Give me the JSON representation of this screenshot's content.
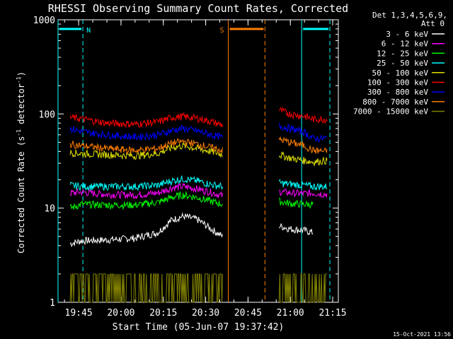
{
  "chart_data": {
    "type": "line",
    "title": "RHESSI Observing Summary Count Rates, Corrected",
    "xlabel": "Start Time (05-Jun-07 19:37:42)",
    "ylabel": "Corrected Count Rate (s",
    "ylabel_sup1": "-1",
    "ylabel_mid": " detector",
    "ylabel_sup2": "-1",
    "ylabel_end": ")",
    "yscale": "log",
    "ylim": [
      1,
      1000
    ],
    "xlim": [
      "19:37:42",
      "21:17"
    ],
    "ytick_labels": [
      "1",
      "10",
      "100",
      "1000"
    ],
    "xtick_labels": [
      "19:45",
      "20:00",
      "20:15",
      "20:30",
      "20:45",
      "21:00",
      "21:15"
    ],
    "legend_header": [
      "Det 1,3,4,5,6,9,",
      "Att 0"
    ],
    "legend_position": "right",
    "footer": "15-Oct-2021 13:56",
    "flags": [
      {
        "label": "N",
        "color": "#00ffff",
        "spans": [
          [
            "19:37:42",
            "19:46:30"
          ],
          [
            "21:04",
            "21:14"
          ]
        ]
      },
      {
        "label": "S",
        "color": "#ff7f00",
        "spans": [
          [
            "20:38",
            "20:51"
          ]
        ]
      }
    ],
    "series": [
      {
        "name": "3 - 6 keV",
        "color": "#ffffff",
        "values": [
          [
            "19:42",
            4.2
          ],
          [
            "19:46",
            4.5
          ],
          [
            "19:55",
            4.6
          ],
          [
            "20:05",
            4.8
          ],
          [
            "20:13",
            5.5
          ],
          [
            "20:18",
            7.5
          ],
          [
            "20:22",
            8.2
          ],
          [
            "20:27",
            7.6
          ],
          [
            "20:32",
            6.0
          ],
          [
            "20:36",
            5.0
          ],
          [
            "20:56",
            6.5
          ],
          [
            "21:00",
            6.0
          ],
          [
            "21:05",
            5.8
          ],
          [
            "21:08",
            5.5
          ]
        ]
      },
      {
        "name": "6 - 12 keV",
        "color": "#ff00ff",
        "values": [
          [
            "19:42",
            14.5
          ],
          [
            "19:46",
            14.8
          ],
          [
            "19:55",
            14.0
          ],
          [
            "20:05",
            13.8
          ],
          [
            "20:13",
            14.5
          ],
          [
            "20:18",
            16.5
          ],
          [
            "20:22",
            17.0
          ],
          [
            "20:27",
            16.0
          ],
          [
            "20:32",
            14.8
          ],
          [
            "20:36",
            13.5
          ],
          [
            "20:56",
            15.0
          ],
          [
            "21:00",
            14.5
          ],
          [
            "21:05",
            14.3
          ],
          [
            "21:08",
            14.5
          ],
          [
            "21:13",
            14.0
          ]
        ]
      },
      {
        "name": "12 - 25 keV",
        "color": "#00ff00",
        "values": [
          [
            "19:42",
            10.0
          ],
          [
            "19:46",
            11.0
          ],
          [
            "19:55",
            10.8
          ],
          [
            "20:05",
            10.8
          ],
          [
            "20:13",
            11.5
          ],
          [
            "20:18",
            13.0
          ],
          [
            "20:22",
            13.8
          ],
          [
            "20:27",
            13.0
          ],
          [
            "20:32",
            11.8
          ],
          [
            "20:36",
            11.0
          ],
          [
            "20:56",
            11.8
          ],
          [
            "21:00",
            11.2
          ],
          [
            "21:05",
            11.0
          ],
          [
            "21:08",
            11.0
          ]
        ]
      },
      {
        "name": "25 - 50 keV",
        "color": "#00ffff",
        "values": [
          [
            "19:42",
            17.5
          ],
          [
            "19:46",
            17.0
          ],
          [
            "19:55",
            17.0
          ],
          [
            "20:05",
            17.0
          ],
          [
            "20:13",
            17.5
          ],
          [
            "20:18",
            19.5
          ],
          [
            "20:22",
            20.5
          ],
          [
            "20:27",
            19.5
          ],
          [
            "20:32",
            17.8
          ],
          [
            "20:36",
            17.0
          ],
          [
            "20:56",
            18.5
          ],
          [
            "21:00",
            18.0
          ],
          [
            "21:05",
            17.5
          ],
          [
            "21:08",
            17.0
          ],
          [
            "21:13",
            17.0
          ]
        ]
      },
      {
        "name": "50 - 100 keV",
        "color": "#e0e000",
        "values": [
          [
            "19:42",
            39
          ],
          [
            "19:46",
            38
          ],
          [
            "19:55",
            37
          ],
          [
            "20:05",
            36
          ],
          [
            "20:13",
            38
          ],
          [
            "20:18",
            44
          ],
          [
            "20:22",
            46
          ],
          [
            "20:27",
            43
          ],
          [
            "20:32",
            40
          ],
          [
            "20:36",
            37
          ],
          [
            "20:56",
            37
          ],
          [
            "21:00",
            34
          ],
          [
            "21:05",
            32
          ],
          [
            "21:08",
            31
          ],
          [
            "21:13",
            32
          ]
        ]
      },
      {
        "name": "100 - 300 keV",
        "color": "#ff0000",
        "values": [
          [
            "19:42",
            92
          ],
          [
            "19:46",
            89
          ],
          [
            "19:55",
            80
          ],
          [
            "20:05",
            78
          ],
          [
            "20:13",
            82
          ],
          [
            "20:18",
            92
          ],
          [
            "20:22",
            94
          ],
          [
            "20:27",
            90
          ],
          [
            "20:32",
            83
          ],
          [
            "20:36",
            76
          ],
          [
            "20:56",
            110
          ],
          [
            "21:00",
            100
          ],
          [
            "21:05",
            95
          ],
          [
            "21:08",
            88
          ],
          [
            "21:13",
            88
          ]
        ]
      },
      {
        "name": "300 - 800 keV",
        "color": "#0000ff",
        "values": [
          [
            "19:42",
            70
          ],
          [
            "19:46",
            65
          ],
          [
            "19:55",
            60
          ],
          [
            "20:05",
            57
          ],
          [
            "20:13",
            60
          ],
          [
            "20:18",
            67
          ],
          [
            "20:22",
            70
          ],
          [
            "20:27",
            66
          ],
          [
            "20:32",
            60
          ],
          [
            "20:36",
            56
          ],
          [
            "20:56",
            75
          ],
          [
            "21:00",
            70
          ],
          [
            "21:05",
            64
          ],
          [
            "21:08",
            55
          ],
          [
            "21:13",
            55
          ]
        ]
      },
      {
        "name": "800 - 7000 keV",
        "color": "#ff7f00",
        "values": [
          [
            "19:42",
            48
          ],
          [
            "19:46",
            46
          ],
          [
            "19:55",
            43
          ],
          [
            "20:05",
            41
          ],
          [
            "20:13",
            43
          ],
          [
            "20:18",
            49
          ],
          [
            "20:22",
            51
          ],
          [
            "20:27",
            48
          ],
          [
            "20:32",
            44
          ],
          [
            "20:36",
            41
          ],
          [
            "20:56",
            54
          ],
          [
            "21:00",
            50
          ],
          [
            "21:05",
            46
          ],
          [
            "21:08",
            41
          ],
          [
            "21:13",
            40
          ]
        ]
      },
      {
        "name": "7000 - 15000 keV",
        "color": "#808000",
        "values": [
          [
            "19:42",
            1.5
          ],
          [
            "19:46",
            1.5
          ],
          [
            "19:55",
            1.4
          ],
          [
            "20:05",
            1.4
          ],
          [
            "20:13",
            1.5
          ],
          [
            "20:18",
            1.6
          ],
          [
            "20:22",
            1.5
          ],
          [
            "20:27",
            1.6
          ],
          [
            "20:32",
            1.5
          ],
          [
            "20:36",
            1.4
          ],
          [
            "20:56",
            1.5
          ],
          [
            "21:00",
            1.5
          ],
          [
            "21:05",
            1.5
          ],
          [
            "21:08",
            1.4
          ],
          [
            "21:13",
            1.5
          ]
        ]
      }
    ]
  }
}
